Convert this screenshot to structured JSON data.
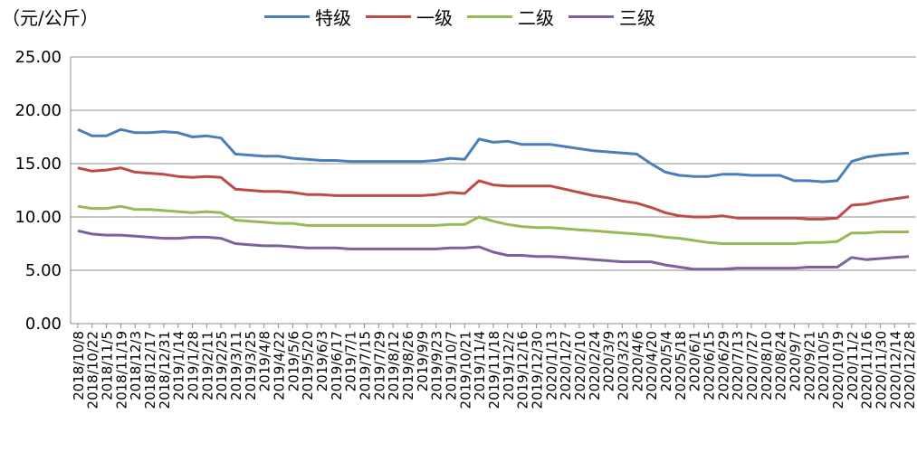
{
  "chart_data": {
    "type": "line",
    "ylabel": "（元/公斤）",
    "ylim": [
      0,
      25
    ],
    "yticks": [
      "0.00",
      "5.00",
      "10.00",
      "15.00",
      "20.00",
      "25.00"
    ],
    "grid": true,
    "legend_position": "top-center",
    "x_labels": [
      "2018/10/8",
      "2018/10/22",
      "2018/11/5",
      "2018/11/19",
      "2018/12/3",
      "2018/12/17",
      "2018/12/31",
      "2019/1/14",
      "2019/1/28",
      "2019/2/11",
      "2019/2/25",
      "2019/3/11",
      "2019/3/25",
      "2019/4/8",
      "2019/4/22",
      "2019/5/6",
      "2019/5/20",
      "2019/6/3",
      "2019/6/17",
      "2019/7/1",
      "2019/7/15",
      "2019/7/29",
      "2019/8/12",
      "2019/8/26",
      "2019/9/9",
      "2019/9/23",
      "2019/10/7",
      "2019/10/21",
      "2019/11/4",
      "2019/11/18",
      "2019/12/2",
      "2019/12/16",
      "2019/12/30",
      "2020/1/13",
      "2020/1/27",
      "2020/2/10",
      "2020/2/24",
      "2020/3/9",
      "2020/3/23",
      "2020/4/6",
      "2020/4/20",
      "2020/5/4",
      "2020/5/18",
      "2020/6/1",
      "2020/6/15",
      "2020/6/29",
      "2020/7/13",
      "2020/7/27",
      "2020/8/10",
      "2020/8/24",
      "2020/9/7",
      "2020/9/21",
      "2020/10/5",
      "2020/10/19",
      "2020/11/2",
      "2020/11/16",
      "2020/11/30",
      "2020/12/14",
      "2020/12/28"
    ],
    "series": [
      {
        "name": "特级",
        "color": "#4a7ebb",
        "values": [
          18.2,
          17.6,
          17.6,
          18.2,
          17.9,
          17.9,
          18.0,
          17.9,
          17.5,
          17.6,
          17.4,
          15.9,
          15.8,
          15.7,
          15.7,
          15.5,
          15.4,
          15.3,
          15.3,
          15.2,
          15.2,
          15.2,
          15.2,
          15.2,
          15.2,
          15.3,
          15.5,
          15.4,
          17.3,
          17.0,
          17.1,
          16.8,
          16.8,
          16.8,
          16.6,
          16.4,
          16.2,
          16.1,
          16.0,
          15.9,
          15.0,
          14.2,
          13.9,
          13.8,
          13.8,
          14.0,
          14.0,
          13.9,
          13.9,
          13.9,
          13.4,
          13.4,
          13.3,
          13.4,
          15.2,
          15.6,
          15.8,
          15.9,
          16.0
        ]
      },
      {
        "name": "一级",
        "color": "#be4b48",
        "values": [
          14.6,
          14.3,
          14.4,
          14.6,
          14.2,
          14.1,
          14.0,
          13.8,
          13.7,
          13.8,
          13.7,
          12.6,
          12.5,
          12.4,
          12.4,
          12.3,
          12.1,
          12.1,
          12.0,
          12.0,
          12.0,
          12.0,
          12.0,
          12.0,
          12.0,
          12.1,
          12.3,
          12.2,
          13.4,
          13.0,
          12.9,
          12.9,
          12.9,
          12.9,
          12.6,
          12.3,
          12.0,
          11.8,
          11.5,
          11.3,
          10.9,
          10.4,
          10.1,
          10.0,
          10.0,
          10.1,
          9.9,
          9.9,
          9.9,
          9.9,
          9.9,
          9.8,
          9.8,
          9.9,
          11.1,
          11.2,
          11.5,
          11.7,
          11.9
        ]
      },
      {
        "name": "二级",
        "color": "#98b954",
        "values": [
          11.0,
          10.8,
          10.8,
          11.0,
          10.7,
          10.7,
          10.6,
          10.5,
          10.4,
          10.5,
          10.4,
          9.7,
          9.6,
          9.5,
          9.4,
          9.4,
          9.2,
          9.2,
          9.2,
          9.2,
          9.2,
          9.2,
          9.2,
          9.2,
          9.2,
          9.2,
          9.3,
          9.3,
          10.0,
          9.6,
          9.3,
          9.1,
          9.0,
          9.0,
          8.9,
          8.8,
          8.7,
          8.6,
          8.5,
          8.4,
          8.3,
          8.1,
          8.0,
          7.8,
          7.6,
          7.5,
          7.5,
          7.5,
          7.5,
          7.5,
          7.5,
          7.6,
          7.6,
          7.7,
          8.5,
          8.5,
          8.6,
          8.6,
          8.6
        ]
      },
      {
        "name": "三级",
        "color": "#7d60a0",
        "values": [
          8.7,
          8.4,
          8.3,
          8.3,
          8.2,
          8.1,
          8.0,
          8.0,
          8.1,
          8.1,
          8.0,
          7.5,
          7.4,
          7.3,
          7.3,
          7.2,
          7.1,
          7.1,
          7.1,
          7.0,
          7.0,
          7.0,
          7.0,
          7.0,
          7.0,
          7.0,
          7.1,
          7.1,
          7.2,
          6.7,
          6.4,
          6.4,
          6.3,
          6.3,
          6.2,
          6.1,
          6.0,
          5.9,
          5.8,
          5.8,
          5.8,
          5.5,
          5.3,
          5.1,
          5.1,
          5.1,
          5.2,
          5.2,
          5.2,
          5.2,
          5.2,
          5.3,
          5.3,
          5.3,
          6.2,
          6.0,
          6.1,
          6.2,
          6.3
        ]
      }
    ]
  }
}
